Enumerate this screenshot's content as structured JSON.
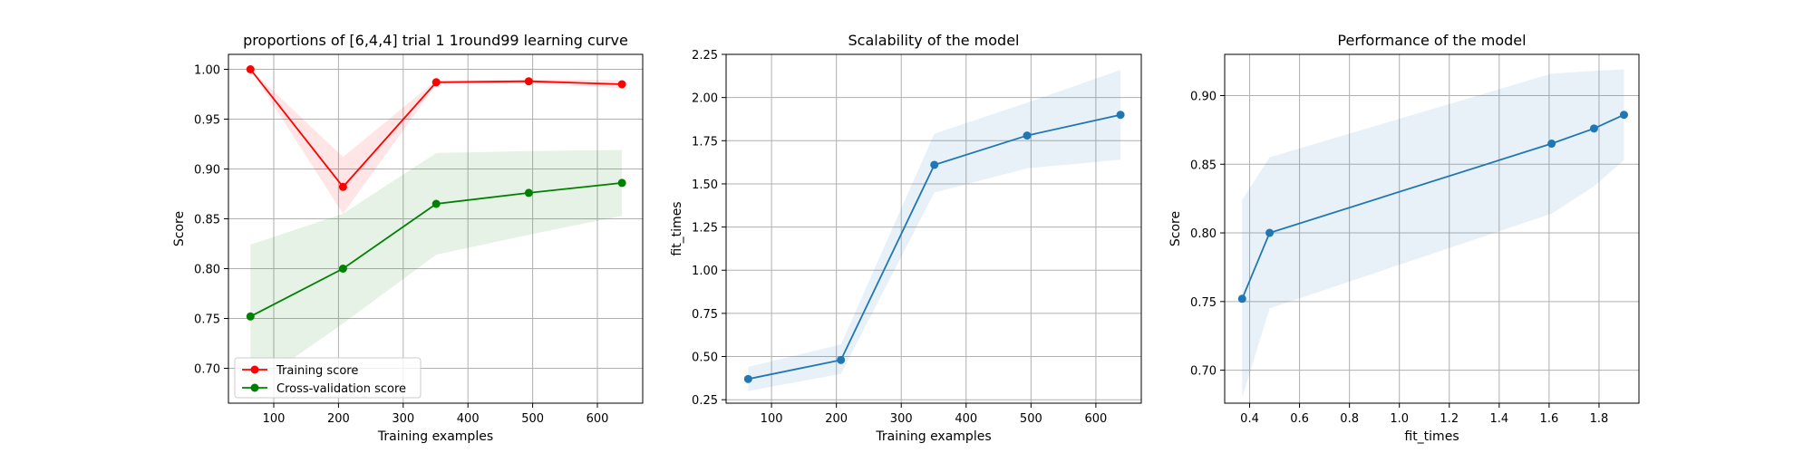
{
  "chart_data": [
    {
      "type": "line",
      "title": "proportions of [6,4,4] trial 1 1round99 learning curve",
      "xlabel": "Training examples",
      "ylabel": "Score",
      "xlim": [
        30,
        670
      ],
      "ylim": [
        0.665,
        1.015
      ],
      "xticks": [
        100,
        200,
        300,
        400,
        500,
        600
      ],
      "yticks": [
        0.7,
        0.75,
        0.8,
        0.85,
        0.9,
        0.95,
        1.0
      ],
      "grid": true,
      "legend_position": "lower-left",
      "x": [
        64,
        207,
        351,
        494,
        638
      ],
      "series": [
        {
          "name": "Training score",
          "color": "#ff0000",
          "values": [
            1.0,
            0.882,
            0.987,
            0.988,
            0.985
          ],
          "band_lower": [
            1.0,
            0.855,
            0.985,
            0.986,
            0.981
          ],
          "band_upper": [
            1.0,
            0.912,
            0.989,
            0.99,
            0.989
          ]
        },
        {
          "name": "Cross-validation score",
          "color": "#008000",
          "values": [
            0.752,
            0.8,
            0.865,
            0.876,
            0.886
          ],
          "band_lower": [
            0.68,
            0.745,
            0.814,
            0.834,
            0.853
          ],
          "band_upper": [
            0.824,
            0.855,
            0.916,
            0.918,
            0.919
          ]
        }
      ]
    },
    {
      "type": "line",
      "title": "Scalability of the model",
      "xlabel": "Training examples",
      "ylabel": "fit_times",
      "xlim": [
        30,
        670
      ],
      "ylim": [
        0.23,
        2.25
      ],
      "xticks": [
        100,
        200,
        300,
        400,
        500,
        600
      ],
      "yticks": [
        0.25,
        0.5,
        0.75,
        1.0,
        1.25,
        1.5,
        1.75,
        2.0,
        2.25
      ],
      "grid": true,
      "x": [
        64,
        207,
        351,
        494,
        638
      ],
      "series": [
        {
          "color": "#1f77b4",
          "values": [
            0.37,
            0.48,
            1.61,
            1.78,
            1.9
          ],
          "band_lower": [
            0.3,
            0.4,
            1.45,
            1.59,
            1.64
          ],
          "band_upper": [
            0.44,
            0.57,
            1.79,
            1.97,
            2.16
          ]
        }
      ]
    },
    {
      "type": "line",
      "title": "Performance of the model",
      "xlabel": "fit_times",
      "ylabel": "Score",
      "xlim": [
        0.3,
        1.96
      ],
      "ylim": [
        0.676,
        0.93
      ],
      "xticks": [
        0.4,
        0.6,
        0.8,
        1.0,
        1.2,
        1.4,
        1.6,
        1.8
      ],
      "yticks": [
        0.7,
        0.75,
        0.8,
        0.85,
        0.9
      ],
      "grid": true,
      "x": [
        0.37,
        0.48,
        1.61,
        1.78,
        1.9
      ],
      "series": [
        {
          "color": "#1f77b4",
          "values": [
            0.752,
            0.8,
            0.865,
            0.876,
            0.886
          ],
          "band_lower": [
            0.68,
            0.745,
            0.814,
            0.834,
            0.853
          ],
          "band_upper": [
            0.824,
            0.855,
            0.916,
            0.918,
            0.919
          ]
        }
      ]
    }
  ]
}
